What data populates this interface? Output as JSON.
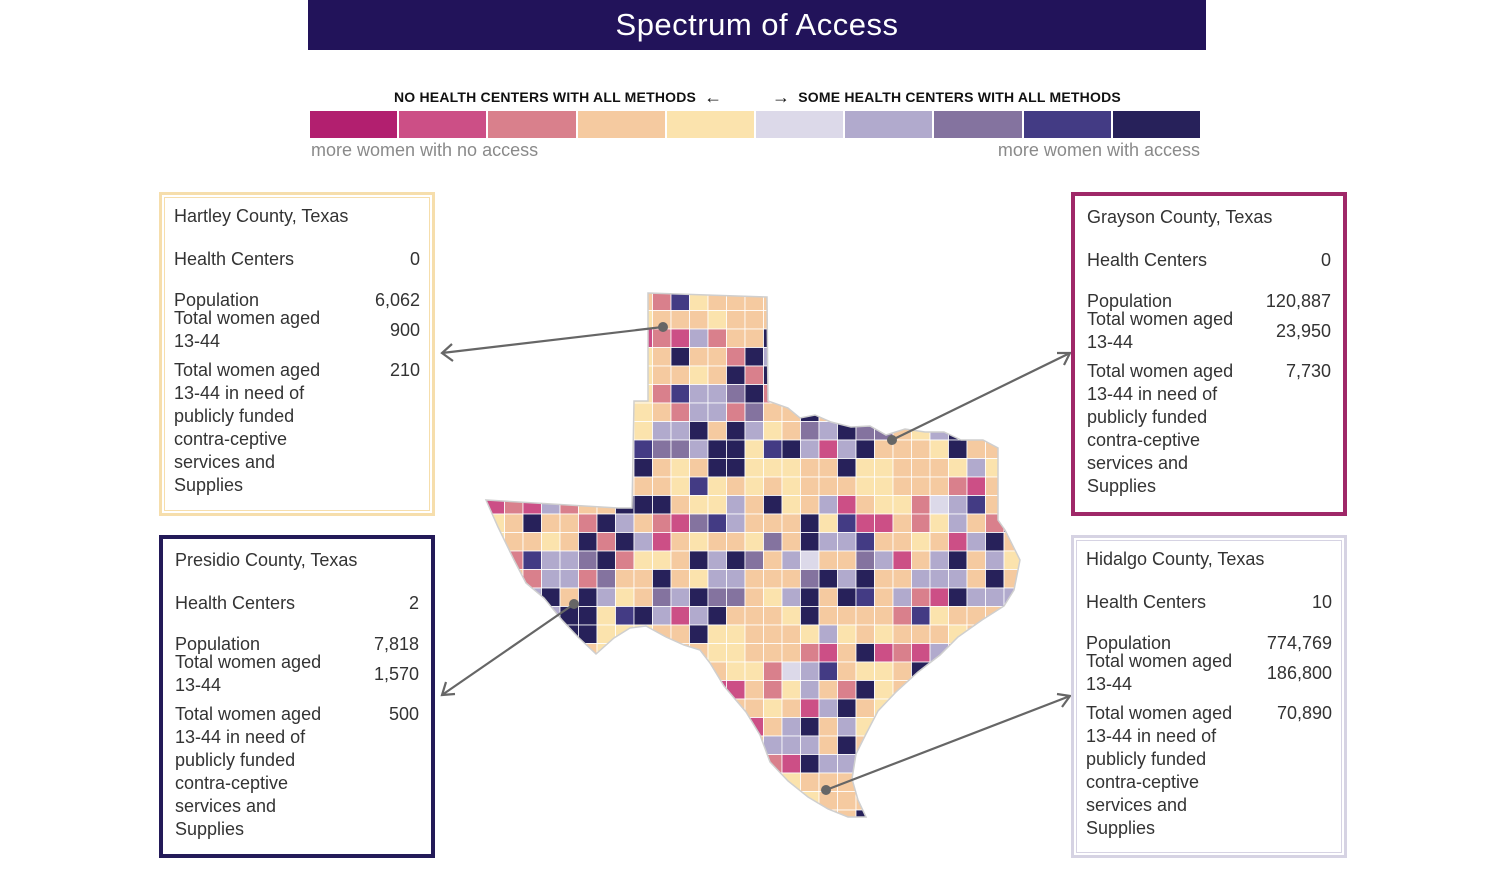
{
  "title": "Spectrum of Access",
  "legend": {
    "left_label": "NO HEALTH CENTERS WITH ALL METHODS",
    "left_arrow": "←",
    "right_arrow": "→",
    "right_label": "SOME HEALTH CENTERS WITH ALL METHODS",
    "left_note": "more women with no access",
    "right_note": "more women with access",
    "colors": [
      "#b21f6f",
      "#cc4f86",
      "#d9808c",
      "#f5caa0",
      "#fbe3ad",
      "#dcd9e9",
      "#b1aacd",
      "#84739f",
      "#433b84",
      "#27215a"
    ]
  },
  "cards": {
    "hartley": {
      "county": "Hartley County, Texas",
      "health_centers_label": "Health Centers",
      "health_centers": "0",
      "population_label": "Population",
      "population": "6,062",
      "women_label": "Total women aged 13-44",
      "women": "900",
      "need_label": "Total women aged 13-44 in need of publicly funded contra-ceptive services and Supplies",
      "need": "210",
      "color": "#f6deac"
    },
    "presidio": {
      "county": "Presidio County, Texas",
      "health_centers_label": "Health Centers",
      "health_centers": "2",
      "population_label": "Population",
      "population": "7,818",
      "women_label": "Total women aged 13-44",
      "women": "1,570",
      "need_label": "Total women aged 13-44 in need of publicly funded contra-ceptive services and Supplies",
      "need": "500",
      "color": "#231a58"
    },
    "grayson": {
      "county": "Grayson County, Texas",
      "health_centers_label": "Health Centers",
      "health_centers": "0",
      "population_label": "Population",
      "population": "120,887",
      "women_label": "Total women aged 13-44",
      "women": "23,950",
      "need_label": "Total women aged 13-44 in need of publicly funded contra-ceptive services and Supplies",
      "need": "7,730",
      "color": "#9f2868"
    },
    "hidalgo": {
      "county": "Hidalgo County, Texas",
      "health_centers_label": "Health Centers",
      "health_centers": "10",
      "population_label": "Population",
      "population": "774,769",
      "women_label": "Total women aged 13-44",
      "women": "186,800",
      "need_label": "Total women aged 13-44 in need of publicly funded contra-ceptive services and Supplies",
      "need": "70,890",
      "color": "#d6d3e3"
    }
  },
  "map": {
    "region": "Texas",
    "county_access_levels": [
      3,
      3,
      3,
      4,
      9,
      3,
      3,
      3,
      3,
      2,
      8,
      4,
      3,
      3,
      3,
      3,
      9,
      3,
      4,
      3,
      9,
      9,
      4,
      4,
      4,
      3,
      3,
      9,
      4,
      4,
      3,
      3,
      3,
      4,
      6,
      4,
      3,
      4,
      3,
      3,
      3,
      4,
      3,
      3,
      3,
      3,
      3,
      4,
      8,
      4,
      3,
      4,
      3,
      4,
      3,
      3,
      3,
      4,
      4,
      3,
      3,
      3,
      2,
      1,
      3,
      9,
      1,
      2,
      1,
      6,
      2,
      3,
      3,
      9,
      9,
      9,
      3,
      4,
      4,
      6,
      3,
      9,
      4,
      3,
      6,
      1,
      3,
      4,
      4,
      2,
      5,
      6,
      8,
      3,
      4,
      4,
      3,
      9,
      3,
      3,
      2,
      9,
      6,
      3,
      2,
      1,
      7,
      8,
      6,
      3,
      3,
      3,
      9,
      4,
      8,
      1,
      1,
      3,
      2,
      4,
      6,
      3,
      2,
      9,
      4,
      3,
      3,
      4,
      3,
      9,
      2,
      9,
      6,
      1,
      3,
      4,
      3,
      3,
      4,
      7,
      3,
      9,
      6,
      6,
      8,
      3,
      3,
      4,
      3,
      1,
      6,
      9,
      3,
      4,
      2,
      8,
      6,
      6,
      7,
      9,
      2,
      4,
      4,
      3,
      9,
      6,
      9,
      7,
      3,
      6,
      5,
      3,
      3,
      7,
      6,
      1,
      3,
      6,
      9,
      3,
      6,
      4,
      4,
      3,
      2,
      6,
      6,
      2,
      7,
      3,
      3,
      9,
      3,
      4,
      6,
      6,
      3,
      3,
      3,
      7,
      9,
      6,
      9,
      3,
      3,
      6,
      6,
      6,
      3,
      9,
      3,
      4,
      6,
      6,
      9,
      3,
      9,
      6,
      4,
      3,
      7,
      6,
      9,
      7,
      7,
      3,
      4,
      6,
      9,
      3,
      9,
      8,
      3,
      6,
      2,
      1,
      9,
      6,
      6,
      6,
      8,
      7,
      7,
      6,
      9,
      9,
      4,
      8,
      9,
      6,
      1,
      6,
      9
    ]
  }
}
